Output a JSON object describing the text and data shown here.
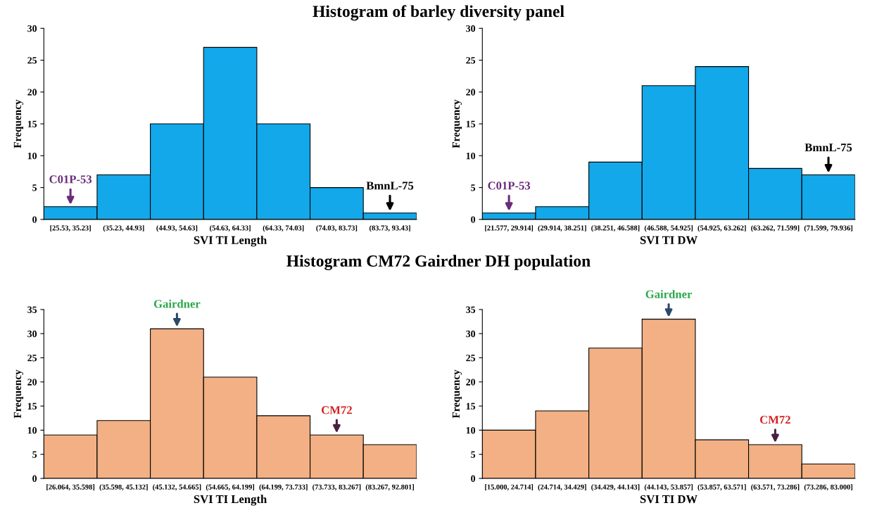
{
  "chart_data": [
    {
      "type": "bar",
      "title": "Histogram of barley diversity panel",
      "xlabel": "SVI TI Length",
      "ylabel": "Frequency",
      "categories": [
        "[25.53, 35.23]",
        "(35.23, 44.93]",
        "(44.93, 54.63]",
        "(54.63, 64.33]",
        "(64.33, 74.03]",
        "(74.03, 83.73]",
        "(83.73, 93.43]"
      ],
      "values": [
        2,
        7,
        15,
        27,
        15,
        5,
        1
      ],
      "color": "#12a8ea",
      "ylim": [
        0,
        30
      ],
      "yticks": [
        0,
        5,
        10,
        15,
        20,
        25,
        30
      ],
      "grid": false,
      "legend": false,
      "annotations": [
        {
          "text": "C01P-53",
          "x": "[25.53, 35.23]",
          "y": 2
        },
        {
          "text": "BmnL-75",
          "x": "(83.73, 93.43]",
          "y": 1
        }
      ]
    },
    {
      "type": "bar",
      "xlabel": "SVI TI DW",
      "ylabel": "Frequency",
      "categories": [
        "[21.577, 29.914]",
        "(29.914, 38.251]",
        "(38.251, 46.588]",
        "(46.588, 54.925]",
        "(54.925, 63.262]",
        "(63.262, 71.599]",
        "(71.599, 79.936]"
      ],
      "values": [
        1,
        2,
        9,
        21,
        24,
        8,
        7
      ],
      "color": "#12a8ea",
      "ylim": [
        0,
        30
      ],
      "yticks": [
        0,
        5,
        10,
        15,
        20,
        25,
        30
      ],
      "grid": false,
      "legend": false,
      "annotations": [
        {
          "text": "C01P-53",
          "x": "[21.577, 29.914]",
          "y": 1
        },
        {
          "text": "BmnL-75",
          "x": "(71.599, 79.936]",
          "y": 7
        }
      ]
    },
    {
      "type": "bar",
      "title": "Histogram CM72 Gairdner DH population",
      "xlabel": "SVI TI Length",
      "ylabel": "Frequency",
      "categories": [
        "[26.064, 35.598]",
        "(35.598, 45.132]",
        "(45.132, 54.665]",
        "(54.665, 64.199]",
        "(64.199, 73.733]",
        "(73.733, 83.267]",
        "(83.267, 92.801]"
      ],
      "values": [
        9,
        12,
        31,
        21,
        13,
        9,
        7
      ],
      "color": "#f2b084",
      "ylim": [
        0,
        35
      ],
      "yticks": [
        0,
        5,
        10,
        15,
        20,
        25,
        30,
        35
      ],
      "grid": false,
      "legend": false,
      "annotations": [
        {
          "text": "Gairdner",
          "x": "(45.132, 54.665]",
          "y": 31
        },
        {
          "text": "CM72",
          "x": "(73.733, 83.267]",
          "y": 9
        }
      ]
    },
    {
      "type": "bar",
      "xlabel": "SVI TI DW",
      "ylabel": "Frequency",
      "categories": [
        "[15.000, 24.714]",
        "(24.714, 34.429]",
        "(34.429, 44.143]",
        "(44.143, 53.857]",
        "(53.857, 63.571]",
        "(63.571, 73.286]",
        "(73.286, 83.000]"
      ],
      "values": [
        10,
        14,
        27,
        33,
        8,
        7,
        3
      ],
      "color": "#f2b084",
      "ylim": [
        0,
        35
      ],
      "yticks": [
        0,
        5,
        10,
        15,
        20,
        25,
        30,
        35
      ],
      "grid": false,
      "legend": false,
      "annotations": [
        {
          "text": "Gairdner",
          "x": "(44.143, 53.857]",
          "y": 33
        },
        {
          "text": "CM72",
          "x": "(63.571, 73.286]",
          "y": 7
        }
      ]
    }
  ]
}
